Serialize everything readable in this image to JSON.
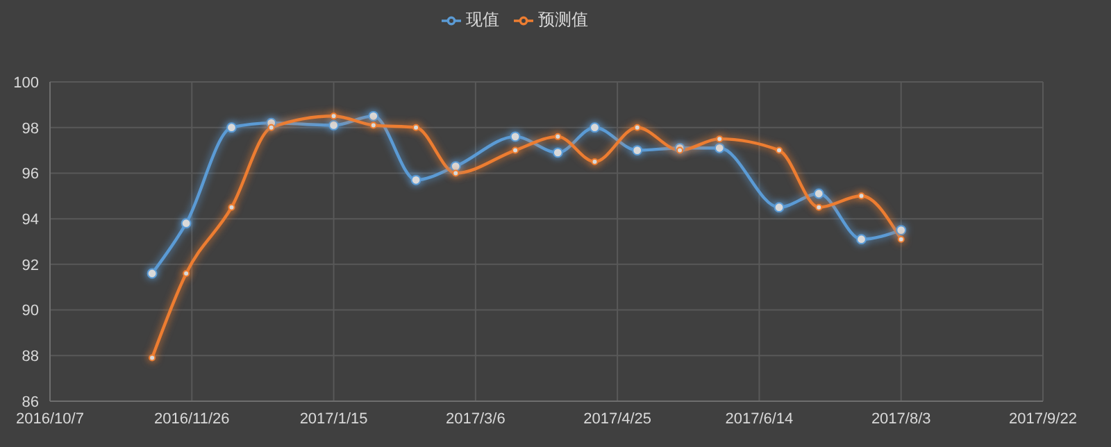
{
  "chart_data": {
    "type": "line",
    "x": [
      "2016-11-12",
      "2016-11-24",
      "2016-12-10",
      "2016-12-24",
      "2017-01-15",
      "2017-01-29",
      "2017-02-13",
      "2017-02-27",
      "2017-03-20",
      "2017-04-04",
      "2017-04-17",
      "2017-05-02",
      "2017-05-17",
      "2017-05-31",
      "2017-06-21",
      "2017-07-05",
      "2017-07-20",
      "2017-08-03"
    ],
    "series": [
      {
        "name": "现值",
        "color": "#5b9bd5",
        "values": [
          91.6,
          93.8,
          98.0,
          98.2,
          98.1,
          98.5,
          95.7,
          96.3,
          97.6,
          96.9,
          98.0,
          97.0,
          97.1,
          97.1,
          94.5,
          95.1,
          93.1,
          93.5
        ]
      },
      {
        "name": "预测值",
        "color": "#ed7d31",
        "values": [
          87.9,
          91.6,
          94.5,
          98.0,
          98.5,
          98.1,
          98.0,
          96.0,
          97.0,
          97.6,
          96.5,
          98.0,
          97.0,
          97.5,
          97.0,
          94.5,
          95.0,
          93.1
        ]
      }
    ],
    "xlim": [
      "2016-10-07",
      "2017-09-22"
    ],
    "xticks": [
      {
        "value": "2016-10-07",
        "label": "2016/10/7"
      },
      {
        "value": "2016-11-26",
        "label": "2016/11/26"
      },
      {
        "value": "2017-01-15",
        "label": "2017/1/15"
      },
      {
        "value": "2017-03-06",
        "label": "2017/3/6"
      },
      {
        "value": "2017-04-25",
        "label": "2017/4/25"
      },
      {
        "value": "2017-06-14",
        "label": "2017/6/14"
      },
      {
        "value": "2017-08-03",
        "label": "2017/8/3"
      },
      {
        "value": "2017-09-22",
        "label": "2017/9/22"
      }
    ],
    "ylim": [
      86,
      100
    ],
    "yticks": [
      86,
      88,
      90,
      92,
      94,
      96,
      98,
      100
    ],
    "grid": true,
    "legend": "top",
    "marker": "circle",
    "line_style": "solid"
  }
}
